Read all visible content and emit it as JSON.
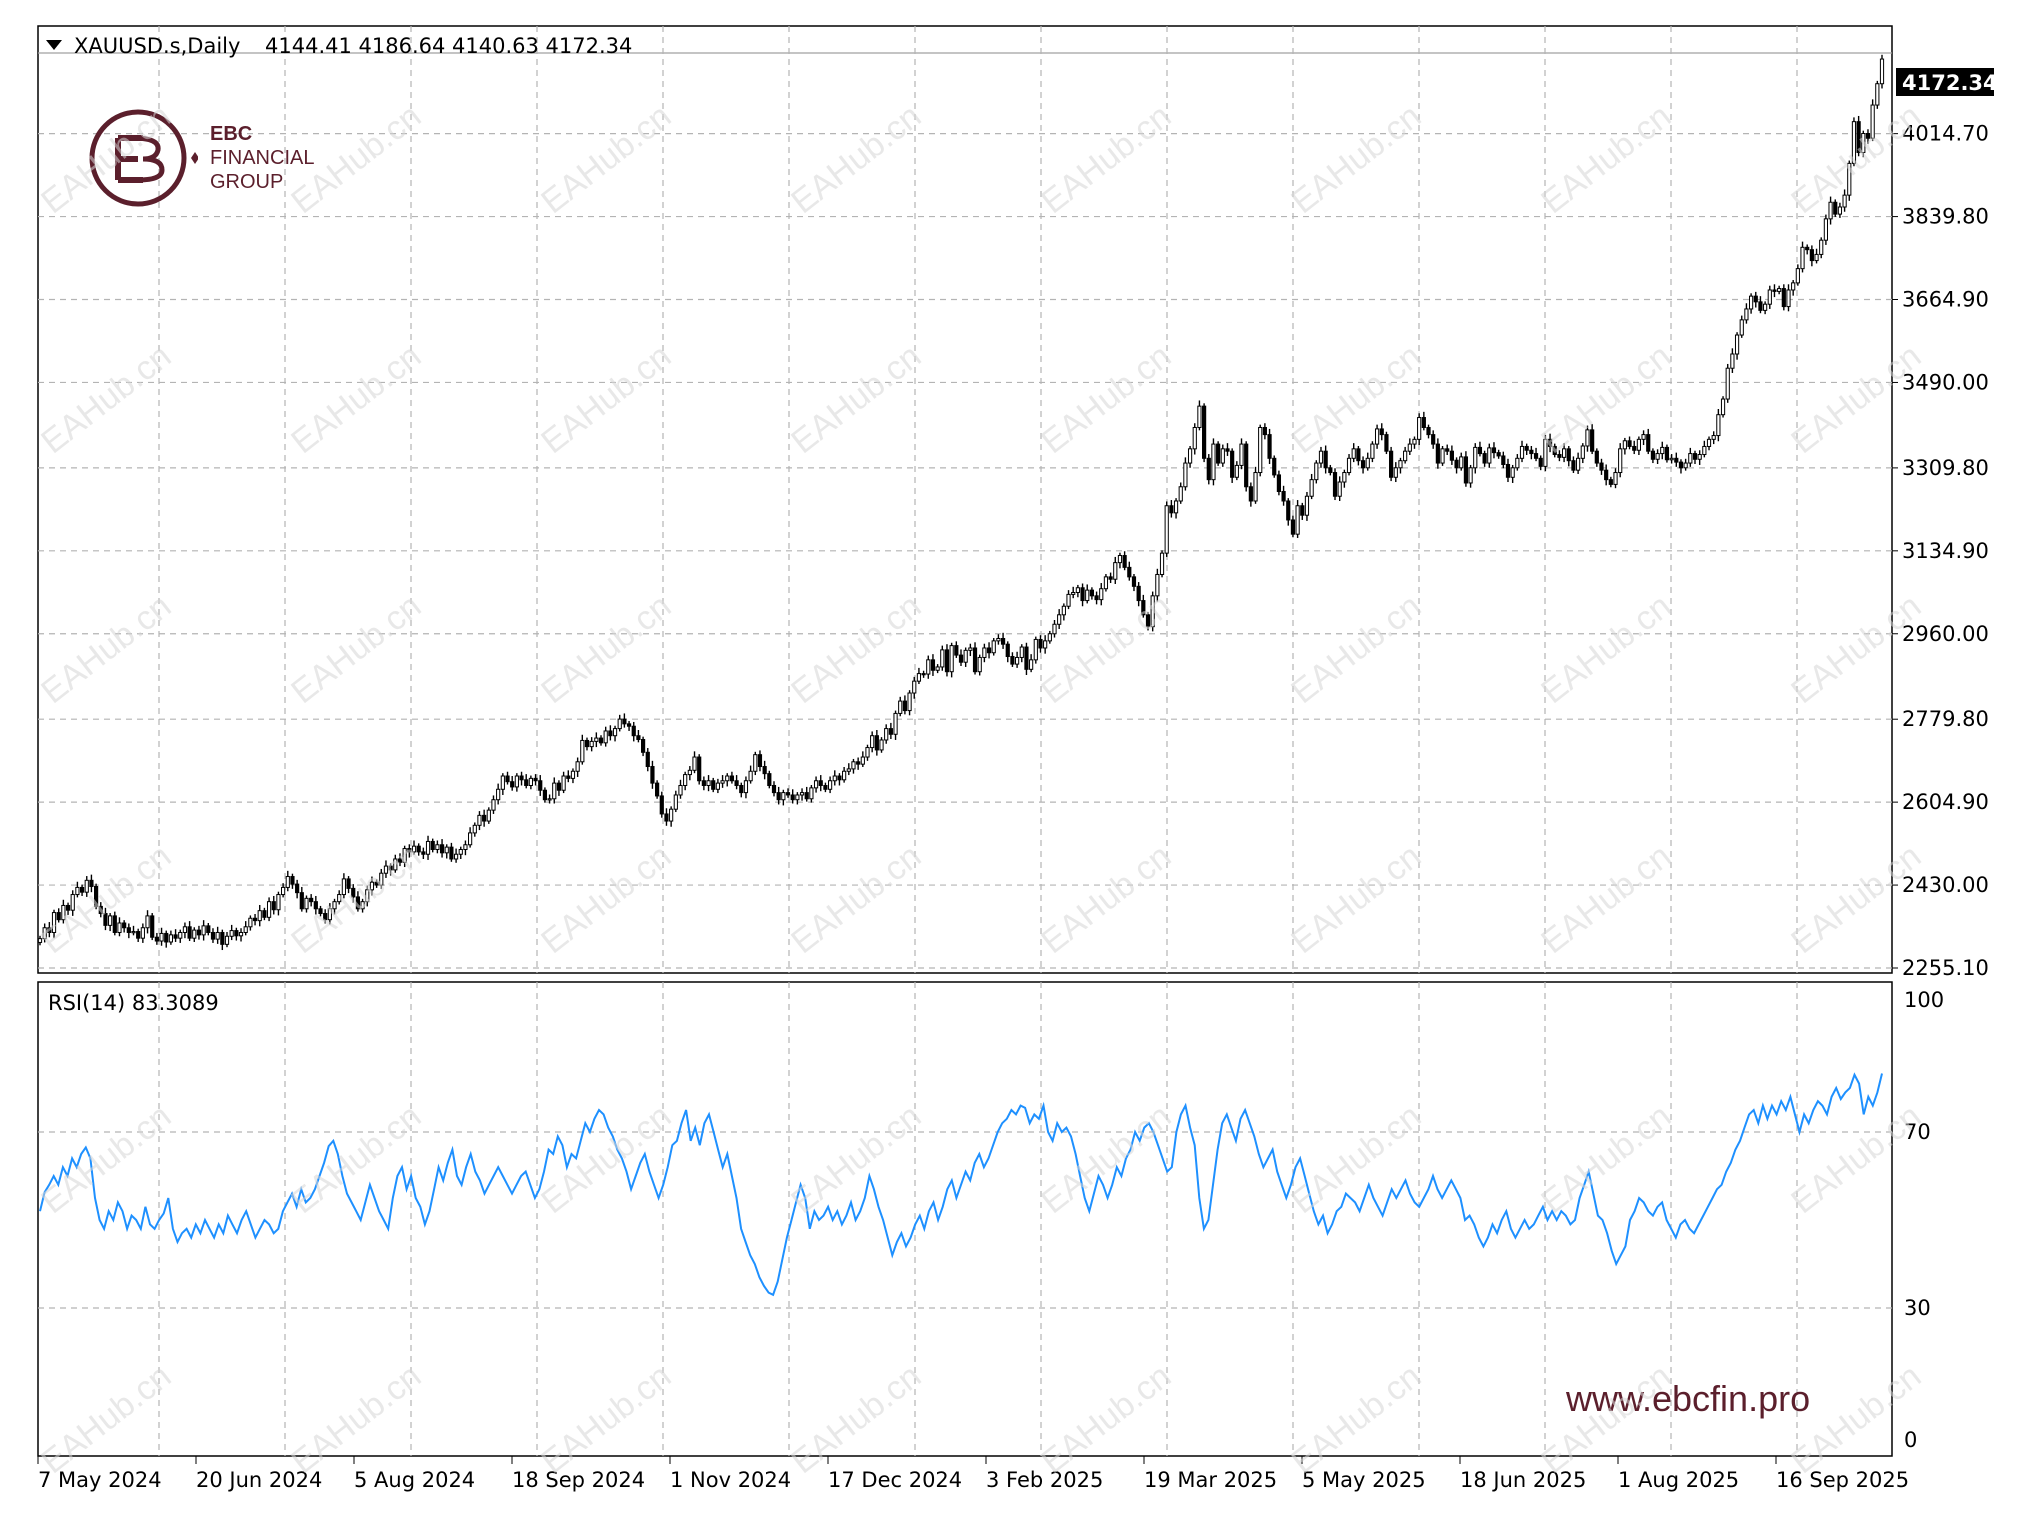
{
  "header": {
    "symbol_label": "XAUUSD.s,Daily",
    "ohlc": "4144.41 4186.64 4140.63 4172.34",
    "rsi_label": "RSI(14) 83.3089"
  },
  "branding": {
    "logo_line1": "EBC",
    "logo_line2": "FINANCIAL",
    "logo_line3": "GROUP",
    "website": "www.ebcfin.pro",
    "watermark": "EAHub.cn"
  },
  "colors": {
    "candles": "#000000",
    "rsi_line": "#1e90ff",
    "grid": "#b4b4b4",
    "brand": "#5b1f2c",
    "price_tag_bg": "#000000"
  },
  "chart_data": [
    {
      "type": "candlestick",
      "title": "XAUUSD.s,Daily",
      "last_price": 4172.34,
      "last_price_label": "4172.34",
      "ylim": [
        2255.1,
        4189.0
      ],
      "y_ticks": [
        2255.1,
        2430.0,
        2604.9,
        2779.8,
        2960.0,
        3134.9,
        3309.8,
        3490.0,
        3664.9,
        3839.8,
        4014.7
      ],
      "y_tick_labels": [
        "2255.10",
        "2430.00",
        "2604.90",
        "2779.80",
        "2960.00",
        "3134.90",
        "3309.80",
        "3490.00",
        "3664.90",
        "3839.80",
        "4014.70"
      ],
      "x_tick_labels": [
        "7 May 2024",
        "20 Jun 2024",
        "5 Aug 2024",
        "18 Sep 2024",
        "1 Nov 2024",
        "17 Dec 2024",
        "3 Feb 2025",
        "19 Mar 2025",
        "5 May 2025",
        "18 Jun 2025",
        "1 Aug 2025",
        "16 Sep 2025"
      ],
      "closes": [
        2317,
        2340,
        2330,
        2372,
        2357,
        2387,
        2377,
        2410,
        2425,
        2415,
        2440,
        2427,
        2385,
        2370,
        2345,
        2365,
        2330,
        2350,
        2340,
        2330,
        2332,
        2318,
        2340,
        2365,
        2320,
        2312,
        2328,
        2310,
        2325,
        2318,
        2330,
        2342,
        2318,
        2335,
        2325,
        2344,
        2330,
        2316,
        2330,
        2305,
        2322,
        2334,
        2323,
        2330,
        2342,
        2360,
        2355,
        2376,
        2362,
        2395,
        2378,
        2410,
        2425,
        2448,
        2432,
        2414,
        2380,
        2402,
        2395,
        2380,
        2370,
        2357,
        2380,
        2395,
        2410,
        2443,
        2423,
        2405,
        2380,
        2395,
        2420,
        2436,
        2430,
        2455,
        2470,
        2462,
        2485,
        2478,
        2507,
        2500,
        2512,
        2500,
        2495,
        2522,
        2505,
        2515,
        2498,
        2510,
        2485,
        2495,
        2505,
        2515,
        2540,
        2556,
        2577,
        2565,
        2588,
        2610,
        2632,
        2660,
        2648,
        2637,
        2660,
        2652,
        2640,
        2655,
        2650,
        2630,
        2610,
        2612,
        2645,
        2630,
        2660,
        2655,
        2670,
        2690,
        2735,
        2722,
        2733,
        2740,
        2730,
        2755,
        2745,
        2760,
        2780,
        2770,
        2765,
        2745,
        2737,
        2710,
        2680,
        2645,
        2618,
        2580,
        2565,
        2590,
        2620,
        2640,
        2663,
        2672,
        2700,
        2650,
        2640,
        2650,
        2632,
        2645,
        2650,
        2660,
        2650,
        2640,
        2625,
        2650,
        2670,
        2705,
        2680,
        2665,
        2640,
        2625,
        2610,
        2625,
        2620,
        2610,
        2620,
        2625,
        2612,
        2635,
        2650,
        2640,
        2632,
        2650,
        2660,
        2652,
        2670,
        2675,
        2690,
        2685,
        2700,
        2720,
        2745,
        2715,
        2736,
        2760,
        2748,
        2792,
        2818,
        2798,
        2835,
        2860,
        2876,
        2875,
        2905,
        2883,
        2890,
        2926,
        2880,
        2935,
        2915,
        2900,
        2925,
        2930,
        2880,
        2910,
        2930,
        2920,
        2945,
        2950,
        2938,
        2912,
        2896,
        2910,
        2932,
        2885,
        2905,
        2948,
        2930,
        2945,
        2960,
        2980,
        3000,
        3018,
        3043,
        3047,
        3057,
        3030,
        3052,
        3040,
        3032,
        3055,
        3080,
        3075,
        3110,
        3125,
        3100,
        3080,
        3060,
        3030,
        3000,
        2975,
        3040,
        3085,
        3130,
        3230,
        3215,
        3240,
        3270,
        3320,
        3350,
        3395,
        3440,
        3330,
        3285,
        3360,
        3320,
        3350,
        3345,
        3290,
        3315,
        3360,
        3270,
        3240,
        3300,
        3395,
        3380,
        3330,
        3295,
        3260,
        3240,
        3200,
        3170,
        3230,
        3210,
        3250,
        3285,
        3320,
        3345,
        3310,
        3300,
        3250,
        3280,
        3300,
        3330,
        3350,
        3325,
        3310,
        3330,
        3360,
        3392,
        3380,
        3345,
        3290,
        3310,
        3325,
        3345,
        3360,
        3370,
        3416,
        3395,
        3380,
        3360,
        3320,
        3350,
        3345,
        3326,
        3310,
        3333,
        3278,
        3310,
        3353,
        3340,
        3320,
        3352,
        3342,
        3335,
        3317,
        3290,
        3310,
        3330,
        3355,
        3347,
        3340,
        3330,
        3313,
        3370,
        3355,
        3338,
        3332,
        3350,
        3325,
        3305,
        3330,
        3356,
        3390,
        3345,
        3320,
        3305,
        3285,
        3275,
        3300,
        3350,
        3367,
        3355,
        3347,
        3370,
        3380,
        3345,
        3328,
        3340,
        3353,
        3327,
        3330,
        3322,
        3310,
        3320,
        3340,
        3328,
        3338,
        3355,
        3370,
        3378,
        3422,
        3455,
        3520,
        3550,
        3590,
        3622,
        3645,
        3672,
        3660,
        3642,
        3655,
        3685,
        3682,
        3688,
        3650,
        3685,
        3700,
        3730,
        3775,
        3770,
        3747,
        3760,
        3790,
        3835,
        3870,
        3845,
        3860,
        3885,
        3952,
        4040,
        3975,
        4015,
        4005,
        4075,
        4120,
        4172
      ]
    },
    {
      "type": "line",
      "title": "RSI(14) 83.3089",
      "series": [
        {
          "name": "RSI(14)",
          "values": [
            52.0,
            56.3,
            58.0,
            60.0,
            58.0,
            62.0,
            60.0,
            64.0,
            62.0,
            65.0,
            66.5,
            64.0,
            55.0,
            50.0,
            48.0,
            52.0,
            50.0,
            54.0,
            52.0,
            48.0,
            51.0,
            50.0,
            48.0,
            53.0,
            49.0,
            48.0,
            50.0,
            51.5,
            55.0,
            48.0,
            45.0,
            47.0,
            48.0,
            46.0,
            49.0,
            47.0,
            50.0,
            48.0,
            46.0,
            49.0,
            47.0,
            51.0,
            49.0,
            47.0,
            50.0,
            52.0,
            49.0,
            46.0,
            48.0,
            50.0,
            49.0,
            47.0,
            48.0,
            52.0,
            54.0,
            56.0,
            53.0,
            57.0,
            54.0,
            55.0,
            57.0,
            60.0,
            63.0,
            66.8,
            68.0,
            65.0,
            60.0,
            56.0,
            54.0,
            52.0,
            50.0,
            54.0,
            58.0,
            55.0,
            52.0,
            50.0,
            48.0,
            55.0,
            60.0,
            62.0,
            57.0,
            60.0,
            55.0,
            53.0,
            49.0,
            52.0,
            57.0,
            62.0,
            59.0,
            63.0,
            66.0,
            60.0,
            58.0,
            62.0,
            65.0,
            61.0,
            59.0,
            56.0,
            58.0,
            60.0,
            62.0,
            60.0,
            58.0,
            56.0,
            58.0,
            60.0,
            61.0,
            58.0,
            55.0,
            57.0,
            61.0,
            66.0,
            65.0,
            69.0,
            67.0,
            62.0,
            65.0,
            64.0,
            68.0,
            72.0,
            70.0,
            73.0,
            75.0,
            74.0,
            71.0,
            69.0,
            66.0,
            64.0,
            61.0,
            57.0,
            60.0,
            63.0,
            65.0,
            61.0,
            58.0,
            55.0,
            58.0,
            62.0,
            67.0,
            68.0,
            72.0,
            75.0,
            68.0,
            71.0,
            67.0,
            72.0,
            74.0,
            70.0,
            66.0,
            62.0,
            65.0,
            60.0,
            55.0,
            48.0,
            45.0,
            42.0,
            40.0,
            37.0,
            35.0,
            33.5,
            33.0,
            36.0,
            41.0,
            46.0,
            50.0,
            54.0,
            58.0,
            55.0,
            48.0,
            52.0,
            50.0,
            51.0,
            53.0,
            50.0,
            52.0,
            49.0,
            51.0,
            54.0,
            50.0,
            52.0,
            55.0,
            60.0,
            57.0,
            53.0,
            50.0,
            46.0,
            42.0,
            45.0,
            47.0,
            44.0,
            46.0,
            49.0,
            51.0,
            48.0,
            52.0,
            54.0,
            50.0,
            53.0,
            57.0,
            59.0,
            55.0,
            58.0,
            61.0,
            59.0,
            63.0,
            65.0,
            62.0,
            64.0,
            67.0,
            70.0,
            72.0,
            73.0,
            75.0,
            74.0,
            76.0,
            75.5,
            72.0,
            74.0,
            73.0,
            76.0,
            70.0,
            68.0,
            72.0,
            70.0,
            71.0,
            69.0,
            65.0,
            60.0,
            55.0,
            52.0,
            56.0,
            60.0,
            58.0,
            55.0,
            58.0,
            62.0,
            60.0,
            64.0,
            66.0,
            70.0,
            68.0,
            71.0,
            72.0,
            70.0,
            67.0,
            64.0,
            61.0,
            62.0,
            70.0,
            74.0,
            76.0,
            71.0,
            67.0,
            55.0,
            48.0,
            50.0,
            58.0,
            66.0,
            72.0,
            74.0,
            71.0,
            68.0,
            73.0,
            75.0,
            72.0,
            69.0,
            65.0,
            62.0,
            64.0,
            66.0,
            61.0,
            58.0,
            55.0,
            58.0,
            62.0,
            64.0,
            60.0,
            56.0,
            52.0,
            49.0,
            51.0,
            47.0,
            49.0,
            52.0,
            53.0,
            56.0,
            55.0,
            54.0,
            52.0,
            55.0,
            58.0,
            55.0,
            53.0,
            51.0,
            54.0,
            57.0,
            55.0,
            57.0,
            59.0,
            56.0,
            54.0,
            53.0,
            55.0,
            57.0,
            60.0,
            57.0,
            55.0,
            57.0,
            59.0,
            57.0,
            55.0,
            50.0,
            51.0,
            49.0,
            46.0,
            44.0,
            46.0,
            49.0,
            47.0,
            50.0,
            52.0,
            48.0,
            46.0,
            48.0,
            50.0,
            48.0,
            49.0,
            51.0,
            53.0,
            50.0,
            52.0,
            50.0,
            52.0,
            51.0,
            49.0,
            50.0,
            55.0,
            58.0,
            61.0,
            56.0,
            51.0,
            50.0,
            47.0,
            43.0,
            40.0,
            42.0,
            44.0,
            50.0,
            52.0,
            55.0,
            54.0,
            52.0,
            51.0,
            53.0,
            54.0,
            50.0,
            48.0,
            46.0,
            49.0,
            50.0,
            48.0,
            47.0,
            49.0,
            51.0,
            53.0,
            55.0,
            57.0,
            58.0,
            61.0,
            63.0,
            66.0,
            68.0,
            71.0,
            74.0,
            75.0,
            72.0,
            76.0,
            73.0,
            76.0,
            74.0,
            77.0,
            75.0,
            78.0,
            74.0,
            70.0,
            74.0,
            72.0,
            75.0,
            77.0,
            76.0,
            74.0,
            78.0,
            80.0,
            77.5,
            79.0,
            80.0,
            83.0,
            81.0,
            74.0,
            78.0,
            76.0,
            79.0,
            83.3
          ]
        }
      ],
      "ylim": [
        0,
        100
      ],
      "y_tick_labels": [
        "100",
        "70",
        "30",
        "0"
      ],
      "levels": [
        70,
        30
      ]
    }
  ]
}
